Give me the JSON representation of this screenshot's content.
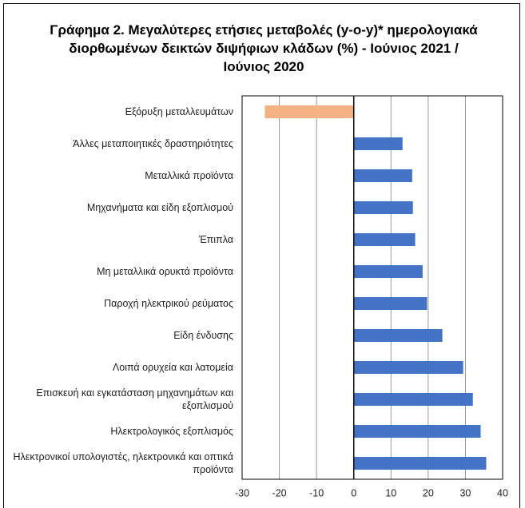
{
  "chart_data": {
    "type": "bar",
    "orientation": "horizontal",
    "title": "Γράφημα 2. Μεγαλύτερες ετήσιες μεταβολές (y-o-y)* ημερολογιακά διορθωμένων δεικτών διψήφιων κλάδων (%) - Ιούνιος 2021 / Ιούνιος 2020",
    "categories": [
      "Εξόρυξη μεταλλευμάτων",
      "Άλλες μεταποιητικές δραστηριότητες",
      "Μεταλλικά προϊόντα",
      "Μηχανήματα και είδη εξοπλισμού",
      "Έπιπλα",
      "Μη μεταλλικά ορυκτά προϊόντα",
      "Παροχή ηλεκτρικού ρεύματος",
      "Είδη ένδυσης",
      "Λοιπά ορυχεία και λατομεία",
      "Επισκευή και εγκατάσταση μηχανημάτων και εξοπλισμού",
      "Ηλεκτρολογικός εξοπλισμός",
      "Ηλεκτρονικοί υπολογιστές, ηλεκτρονικά και οπτικά προϊόντα"
    ],
    "values": [
      -23.9,
      13.1,
      15.7,
      15.9,
      16.5,
      18.5,
      19.7,
      23.8,
      29.4,
      32.0,
      34.1,
      35.6
    ],
    "colors": [
      "#f4b183",
      "#4472c4",
      "#4472c4",
      "#4472c4",
      "#4472c4",
      "#4472c4",
      "#4472c4",
      "#4472c4",
      "#4472c4",
      "#4472c4",
      "#4472c4",
      "#4472c4"
    ],
    "xlim": [
      -30,
      40
    ],
    "xticks": [
      -30,
      -20,
      -10,
      0,
      10,
      20,
      30,
      40
    ],
    "grid": true
  }
}
